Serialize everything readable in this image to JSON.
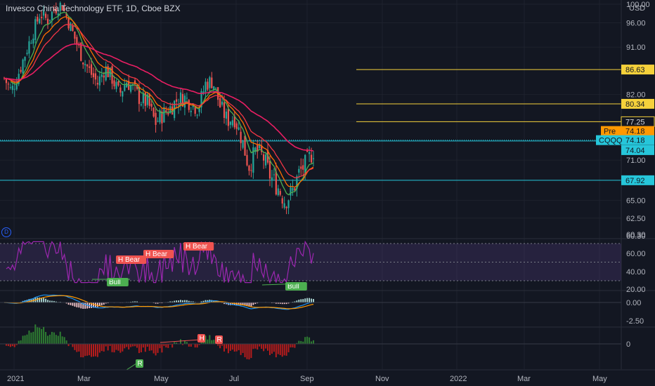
{
  "header": {
    "title": "Invesco China Technology ETF, 1D, Cboe BZX"
  },
  "badges": {
    "d_icon": "D"
  },
  "colors": {
    "background": "#131722",
    "up": "#26a69a",
    "down": "#ef5350",
    "ema_fast": "#4caf50",
    "ema_mid": "#ff6d00",
    "ema_slow": "#f23645",
    "sma_long": "#e91e63",
    "hline_yellow": "#f5d13b",
    "hline_cyan": "#26c6da",
    "rsi": "#9c27b0",
    "macd": "#2196f3",
    "signal": "#ff9800"
  },
  "chart_data": {
    "type": "candlestick",
    "title": "Invesco China Technology ETF, 1D, Cboe BZX",
    "currency": "USD",
    "y_scale": "log",
    "ylim": [
      59.5,
      101
    ],
    "x_ticks": [
      "2021",
      "Mar",
      "May",
      "Jul",
      "Sep",
      "Nov",
      "2022",
      "Mar",
      "May"
    ],
    "y_ticks": [
      "100.00",
      "96.00",
      "91.00",
      "86.63",
      "82.00",
      "80.34",
      "77.25",
      "74.18",
      "74.04",
      "71.00",
      "67.92",
      "65.00",
      "62.50",
      "60.30"
    ],
    "ohlc_close_path": [
      85.0,
      82.5,
      86.0,
      90.0,
      94.0,
      98.0,
      96.5,
      99.0,
      100.0,
      96.0,
      92.0,
      88.5,
      86.0,
      84.0,
      87.0,
      85.0,
      82.0,
      84.5,
      83.0,
      81.0,
      80.5,
      77.0,
      78.5,
      79.5,
      81.0,
      81.5,
      80.5,
      79.5,
      84.0,
      84.5,
      80.0,
      77.5,
      78.0,
      74.5,
      70.0,
      72.5,
      71.5,
      68.5,
      67.0,
      65.0,
      66.0,
      69.0,
      70.5,
      72.5
    ],
    "last_price": 74.18,
    "pre_market_price": 74.18,
    "price_labels": [
      {
        "label": "",
        "value": "86.63"
      },
      {
        "label": "",
        "value": "80.34"
      },
      {
        "label": "",
        "value": "77.25"
      },
      {
        "label": "Pre",
        "value": "74.18"
      },
      {
        "label": "CQQQ",
        "value": "74.18"
      },
      {
        "label": "",
        "value": "74.04"
      },
      {
        "label": "",
        "value": "67.92"
      }
    ],
    "horizontal_levels": [
      86.63,
      80.34,
      77.25,
      74.04,
      67.92
    ],
    "rsi": {
      "yticks": [
        "60.00",
        "40.00",
        "20.00"
      ],
      "upper": 70,
      "mid": 50,
      "lower": 30,
      "labels": [
        "H Bear",
        "H Bear",
        "H Bear",
        "Bull",
        "Bull"
      ]
    },
    "macd": {
      "yticks": [
        "0.00",
        "-2.50"
      ]
    },
    "momentum": {
      "yticks": [
        "0"
      ],
      "labels": [
        "H",
        "R",
        "R"
      ]
    }
  }
}
